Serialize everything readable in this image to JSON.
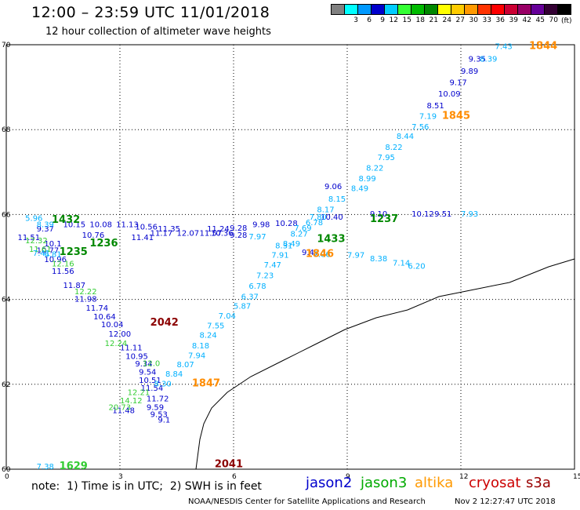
{
  "header": {
    "title": "12:00 – 23:59 UTC 11/01/2018",
    "subtitle": "12 hour collection of altimeter wave heights"
  },
  "colorbar": {
    "colors": [
      "#808080",
      "#00ffff",
      "#0099ff",
      "#0000cc",
      "#00ccff",
      "#33ff33",
      "#00bb00",
      "#008800",
      "#ffff00",
      "#ffcc00",
      "#ff9900",
      "#ff3300",
      "#ff0000",
      "#cc0033",
      "#990066",
      "#660099",
      "#330033",
      "#000000"
    ],
    "labels": [
      "3",
      "6",
      "9",
      "12",
      "15",
      "18",
      "21",
      "24",
      "27",
      "30",
      "33",
      "36",
      "39",
      "42",
      "45",
      "70"
    ],
    "unit": "(ft)"
  },
  "chart_data": {
    "type": "scatter",
    "xlim": [
      0,
      15
    ],
    "ylim": [
      60,
      70
    ],
    "xticks": [
      "0",
      "3",
      "6",
      "9",
      "12",
      "15"
    ],
    "yticks": [
      "60",
      "62",
      "64",
      "66",
      "68",
      "70"
    ],
    "grid": true,
    "series": [
      {
        "name": "jason2",
        "color": "#0000cc",
        "points": [
          {
            "x": 0.3,
            "y": 65.4,
            "label": "11.51"
          },
          {
            "x": 0.8,
            "y": 65.09,
            "label": "10.77"
          },
          {
            "x": 1.0,
            "y": 64.88,
            "label": "10.96"
          },
          {
            "x": 1.2,
            "y": 64.6,
            "label": "11.56"
          },
          {
            "x": 1.5,
            "y": 64.27,
            "label": "11.87"
          },
          {
            "x": 1.8,
            "y": 63.95,
            "label": "11.98"
          },
          {
            "x": 2.1,
            "y": 63.73,
            "label": "11.74"
          },
          {
            "x": 2.3,
            "y": 63.53,
            "label": "10.64"
          },
          {
            "x": 2.5,
            "y": 63.35,
            "label": "10.04"
          },
          {
            "x": 2.7,
            "y": 63.12,
            "label": "12.00"
          },
          {
            "x": 3.0,
            "y": 62.8,
            "label": "11.11"
          },
          {
            "x": 3.15,
            "y": 62.6,
            "label": "10.95"
          },
          {
            "x": 3.4,
            "y": 62.42,
            "label": "9.34"
          },
          {
            "x": 3.5,
            "y": 62.23,
            "label": "9.54"
          },
          {
            "x": 3.5,
            "y": 62.03,
            "label": "10.51"
          },
          {
            "x": 3.55,
            "y": 61.85,
            "label": "11.54"
          },
          {
            "x": 3.7,
            "y": 61.6,
            "label": "11.72"
          },
          {
            "x": 3.7,
            "y": 61.4,
            "label": "9.59"
          },
          {
            "x": 3.8,
            "y": 61.23,
            "label": "9.53"
          },
          {
            "x": 4.0,
            "y": 61.1,
            "label": "9.1"
          },
          {
            "x": 2.8,
            "y": 61.32,
            "label": "11.48"
          },
          {
            "x": 0.8,
            "y": 65.6,
            "label": "9.37"
          },
          {
            "x": 1.0,
            "y": 65.25,
            "label": "10.1"
          },
          {
            "x": 1.5,
            "y": 65.7,
            "label": "10.15"
          },
          {
            "x": 2.0,
            "y": 65.45,
            "label": "10.76"
          },
          {
            "x": 2.2,
            "y": 65.7,
            "label": "10.08"
          },
          {
            "x": 2.9,
            "y": 65.7,
            "label": "11.13"
          },
          {
            "x": 3.3,
            "y": 65.4,
            "label": "11.41"
          },
          {
            "x": 3.4,
            "y": 65.65,
            "label": "10.56"
          },
          {
            "x": 3.8,
            "y": 65.5,
            "label": "11.17"
          },
          {
            "x": 4.0,
            "y": 65.6,
            "label": "11.35"
          },
          {
            "x": 4.5,
            "y": 65.5,
            "label": "12.07"
          },
          {
            "x": 5.1,
            "y": 65.5,
            "label": "11.57"
          },
          {
            "x": 5.3,
            "y": 65.6,
            "label": "11.24"
          },
          {
            "x": 5.4,
            "y": 65.5,
            "label": "10.36"
          },
          {
            "x": 5.9,
            "y": 65.62,
            "label": "9.28"
          },
          {
            "x": 5.9,
            "y": 65.45,
            "label": "9.28"
          },
          {
            "x": 6.5,
            "y": 65.7,
            "label": "9.98"
          },
          {
            "x": 7.1,
            "y": 65.73,
            "label": "10.28"
          },
          {
            "x": 8.3,
            "y": 65.88,
            "label": "10.40"
          },
          {
            "x": 9.6,
            "y": 65.95,
            "label": "9.10"
          },
          {
            "x": 10.7,
            "y": 65.95,
            "label": "10.12"
          },
          {
            "x": 11.3,
            "y": 65.95,
            "label": "9.51"
          },
          {
            "x": 12.2,
            "y": 69.6,
            "label": "9.35"
          },
          {
            "x": 12.0,
            "y": 69.32,
            "label": "9.89"
          },
          {
            "x": 11.7,
            "y": 69.05,
            "label": "9.17"
          },
          {
            "x": 11.4,
            "y": 68.78,
            "label": "10.09"
          },
          {
            "x": 11.1,
            "y": 68.5,
            "label": "8.51"
          },
          {
            "x": 8.4,
            "y": 66.6,
            "label": "9.06"
          },
          {
            "x": 7.8,
            "y": 65.05,
            "label": "9.47"
          }
        ]
      },
      {
        "name": "jason3",
        "color": "#33cc33",
        "points": [
          {
            "x": 0.5,
            "y": 65.32,
            "label": "12.32"
          },
          {
            "x": 0.6,
            "y": 65.12,
            "label": "11.61"
          },
          {
            "x": 1.2,
            "y": 64.78,
            "label": "12.16"
          },
          {
            "x": 1.8,
            "y": 64.12,
            "label": "12.22"
          },
          {
            "x": 2.6,
            "y": 62.9,
            "label": "12.24"
          },
          {
            "x": 3.6,
            "y": 62.43,
            "label": "12.0"
          },
          {
            "x": 3.2,
            "y": 61.75,
            "label": "12.21"
          },
          {
            "x": 3.0,
            "y": 61.55,
            "label": "14.12"
          },
          {
            "x": 2.7,
            "y": 61.4,
            "label": "20.73"
          },
          {
            "x": 1.4,
            "y": 60.0,
            "label": "1629"
          }
        ]
      },
      {
        "name": "altika",
        "color": "#00b0ff",
        "points": [
          {
            "x": 0.5,
            "y": 65.85,
            "label": "5.96"
          },
          {
            "x": 0.8,
            "y": 65.7,
            "label": "8.39"
          },
          {
            "x": 0.7,
            "y": 65.03,
            "label": "7.41"
          },
          {
            "x": 1.0,
            "y": 65.0,
            "label": "6.81"
          },
          {
            "x": 12.9,
            "y": 69.9,
            "label": "7.43"
          },
          {
            "x": 12.5,
            "y": 69.6,
            "label": "8.39"
          },
          {
            "x": 10.9,
            "y": 68.25,
            "label": "7.19"
          },
          {
            "x": 10.7,
            "y": 68.0,
            "label": "7.56"
          },
          {
            "x": 10.3,
            "y": 67.78,
            "label": "8.44"
          },
          {
            "x": 10.0,
            "y": 67.52,
            "label": "8.22"
          },
          {
            "x": 9.8,
            "y": 67.28,
            "label": "7.95"
          },
          {
            "x": 9.5,
            "y": 67.03,
            "label": "8.22"
          },
          {
            "x": 9.3,
            "y": 66.78,
            "label": "8.99"
          },
          {
            "x": 9.1,
            "y": 66.55,
            "label": "8.49"
          },
          {
            "x": 8.5,
            "y": 66.3,
            "label": "8.15"
          },
          {
            "x": 8.2,
            "y": 66.05,
            "label": "8.17"
          },
          {
            "x": 8.0,
            "y": 65.88,
            "label": "7.80"
          },
          {
            "x": 7.9,
            "y": 65.75,
            "label": "6.78"
          },
          {
            "x": 7.6,
            "y": 65.62,
            "label": "7.69"
          },
          {
            "x": 7.5,
            "y": 65.48,
            "label": "8.27"
          },
          {
            "x": 7.3,
            "y": 65.25,
            "label": "8.49"
          },
          {
            "x": 7.1,
            "y": 65.2,
            "label": "8.31"
          },
          {
            "x": 6.4,
            "y": 65.42,
            "label": "7.97"
          },
          {
            "x": 7.0,
            "y": 64.98,
            "label": "7.91"
          },
          {
            "x": 6.8,
            "y": 64.75,
            "label": "7.47"
          },
          {
            "x": 6.6,
            "y": 64.5,
            "label": "7.23"
          },
          {
            "x": 6.4,
            "y": 64.25,
            "label": "6.78"
          },
          {
            "x": 6.2,
            "y": 64.0,
            "label": "6.37"
          },
          {
            "x": 6.0,
            "y": 63.78,
            "label": "5.87"
          },
          {
            "x": 5.6,
            "y": 63.55,
            "label": "7.04"
          },
          {
            "x": 5.3,
            "y": 63.32,
            "label": "7.55"
          },
          {
            "x": 5.1,
            "y": 63.1,
            "label": "8.24"
          },
          {
            "x": 4.9,
            "y": 62.85,
            "label": "8.18"
          },
          {
            "x": 4.8,
            "y": 62.62,
            "label": "7.94"
          },
          {
            "x": 4.5,
            "y": 62.4,
            "label": "8.07"
          },
          {
            "x": 4.2,
            "y": 62.18,
            "label": "8.84"
          },
          {
            "x": 3.9,
            "y": 61.95,
            "label": "8.30"
          },
          {
            "x": 8.1,
            "y": 65.0,
            "label": "7.06"
          },
          {
            "x": 9.0,
            "y": 64.98,
            "label": "7.97"
          },
          {
            "x": 9.6,
            "y": 64.9,
            "label": "8.38"
          },
          {
            "x": 10.2,
            "y": 64.8,
            "label": "7.14"
          },
          {
            "x": 10.6,
            "y": 64.72,
            "label": "6.20"
          },
          {
            "x": 12.0,
            "y": 65.95,
            "label": "7.93"
          },
          {
            "x": 0.8,
            "y": 60.0,
            "label": "7.38"
          }
        ]
      },
      {
        "name": "cryosat",
        "color": "#ff8c00",
        "points": [
          {
            "x": 13.8,
            "y": 69.9,
            "label": "1844"
          },
          {
            "x": 11.5,
            "y": 68.25,
            "label": "1845"
          },
          {
            "x": 7.9,
            "y": 65.0,
            "label": "1846"
          },
          {
            "x": 4.9,
            "y": 61.95,
            "label": "1847"
          }
        ]
      },
      {
        "name": "s3a",
        "color": "#8b0000",
        "points": [
          {
            "x": 3.8,
            "y": 63.38,
            "label": "2042"
          },
          {
            "x": 5.5,
            "y": 60.05,
            "label": "2041"
          }
        ]
      }
    ],
    "labels_green_times": [
      {
        "x": 1.2,
        "y": 65.8,
        "label": "1432"
      },
      {
        "x": 1.4,
        "y": 65.05,
        "label": "1235"
      },
      {
        "x": 2.2,
        "y": 65.25,
        "label": "1236"
      },
      {
        "x": 9.6,
        "y": 65.82,
        "label": "1237"
      },
      {
        "x": 8.2,
        "y": 65.35,
        "label": "1433"
      }
    ]
  },
  "footer": {
    "note": "note:  1) Time is in UTC;  2) SWH is in feet",
    "satellites": [
      {
        "name": "jason2",
        "color": "#0000cc"
      },
      {
        "name": "jason3",
        "color": "#00aa00"
      },
      {
        "name": "altika",
        "color": "#ff9900"
      },
      {
        "name": "cryosat",
        "color": "#cc0000"
      },
      {
        "name": "s3a",
        "color": "#990000"
      }
    ],
    "credit": "NOAA/NESDIS Center for Satellite Applications and Research",
    "timestamp": "Nov  2 12:27:47 UTC 2018"
  }
}
